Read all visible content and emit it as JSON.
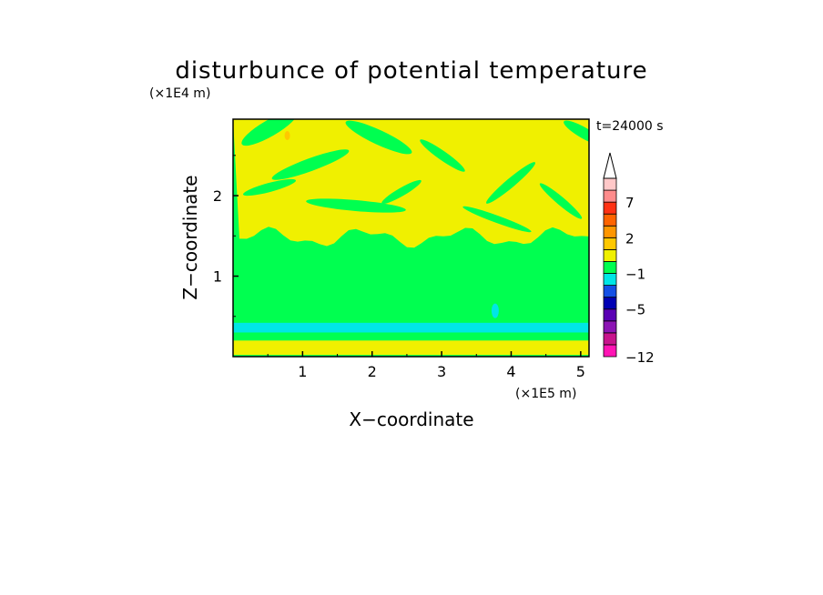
{
  "chart_data": {
    "type": "heatmap",
    "title": "disturbunce of potential temperature",
    "time_label": "t=24000 s",
    "xlabel": "X−coordinate",
    "ylabel": "Z−coordinate",
    "x_unit": "(×1E5 m)",
    "y_unit": "(×1E4 m)",
    "xlim": [
      0,
      5.12
    ],
    "ylim": [
      0,
      2.95
    ],
    "x_ticks": [
      1,
      2,
      3,
      4,
      5
    ],
    "x_tick_labels": [
      "1",
      "2",
      "3",
      "4",
      "5"
    ],
    "y_ticks": [
      1,
      2
    ],
    "y_tick_labels": [
      "1",
      "2"
    ],
    "colorbar": {
      "levels": [
        -12,
        -10,
        -8,
        -6,
        -5,
        -4,
        -2,
        -1,
        0,
        1,
        2,
        3,
        5,
        7,
        9,
        12
      ],
      "colors": [
        "#ff14b4",
        "#c8148c",
        "#8c14b4",
        "#5a00b4",
        "#0000b4",
        "#1450e6",
        "#00e6e6",
        "#00ff50",
        "#f0f000",
        "#ffc800",
        "#ff9600",
        "#ff6400",
        "#ff3214",
        "#ff8c8c",
        "#ffc8c8"
      ],
      "tick_values": [
        -12,
        -5,
        -1,
        2,
        7
      ],
      "tick_labels": [
        "−12",
        "−5",
        "−1",
        "2",
        "7"
      ],
      "extend": "max"
    },
    "regions": [
      {
        "level": "0 to 1",
        "color": "#f0f000",
        "z_range": [
          1.5,
          2.95
        ],
        "description_only": false
      },
      {
        "level": "-1 to 0",
        "color": "#00ff50",
        "z_range": [
          0.42,
          1.45
        ]
      },
      {
        "level": "-2 to -1",
        "color": "#00e6e6",
        "z_range": [
          0.3,
          0.42
        ]
      },
      {
        "level": "-1 to 0",
        "color": "#00ff50",
        "z_range": [
          0.2,
          0.3
        ]
      },
      {
        "level": "0 to 1",
        "color": "#f0f000",
        "z_range": [
          0.02,
          0.2
        ]
      }
    ]
  }
}
